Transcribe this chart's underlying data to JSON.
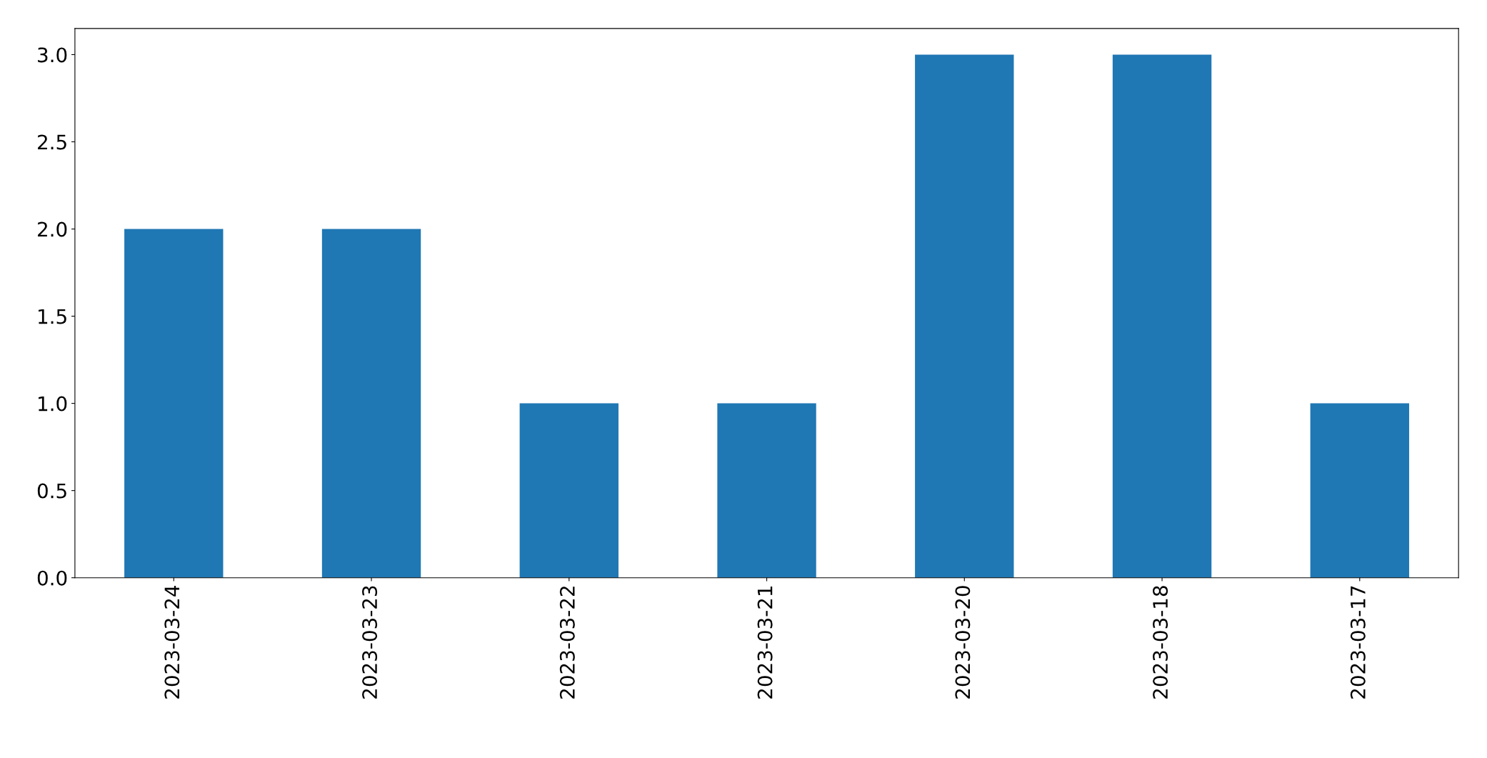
{
  "chart_data": {
    "type": "bar",
    "categories": [
      "2023-03-24",
      "2023-03-23",
      "2023-03-22",
      "2023-03-21",
      "2023-03-20",
      "2023-03-18",
      "2023-03-17"
    ],
    "values": [
      2,
      2,
      1,
      1,
      3,
      3,
      1
    ],
    "color": "#1f77b4",
    "ylim": [
      0,
      3.15
    ],
    "yticks": [
      {
        "value": 0,
        "label": "0.0"
      },
      {
        "value": 0.5,
        "label": "0.5"
      },
      {
        "value": 1,
        "label": "1.0"
      },
      {
        "value": 1.5,
        "label": "1.5"
      },
      {
        "value": 2,
        "label": "2.0"
      },
      {
        "value": 2.5,
        "label": "2.5"
      },
      {
        "value": 3,
        "label": "3.0"
      }
    ],
    "grid": false,
    "legend": false
  }
}
